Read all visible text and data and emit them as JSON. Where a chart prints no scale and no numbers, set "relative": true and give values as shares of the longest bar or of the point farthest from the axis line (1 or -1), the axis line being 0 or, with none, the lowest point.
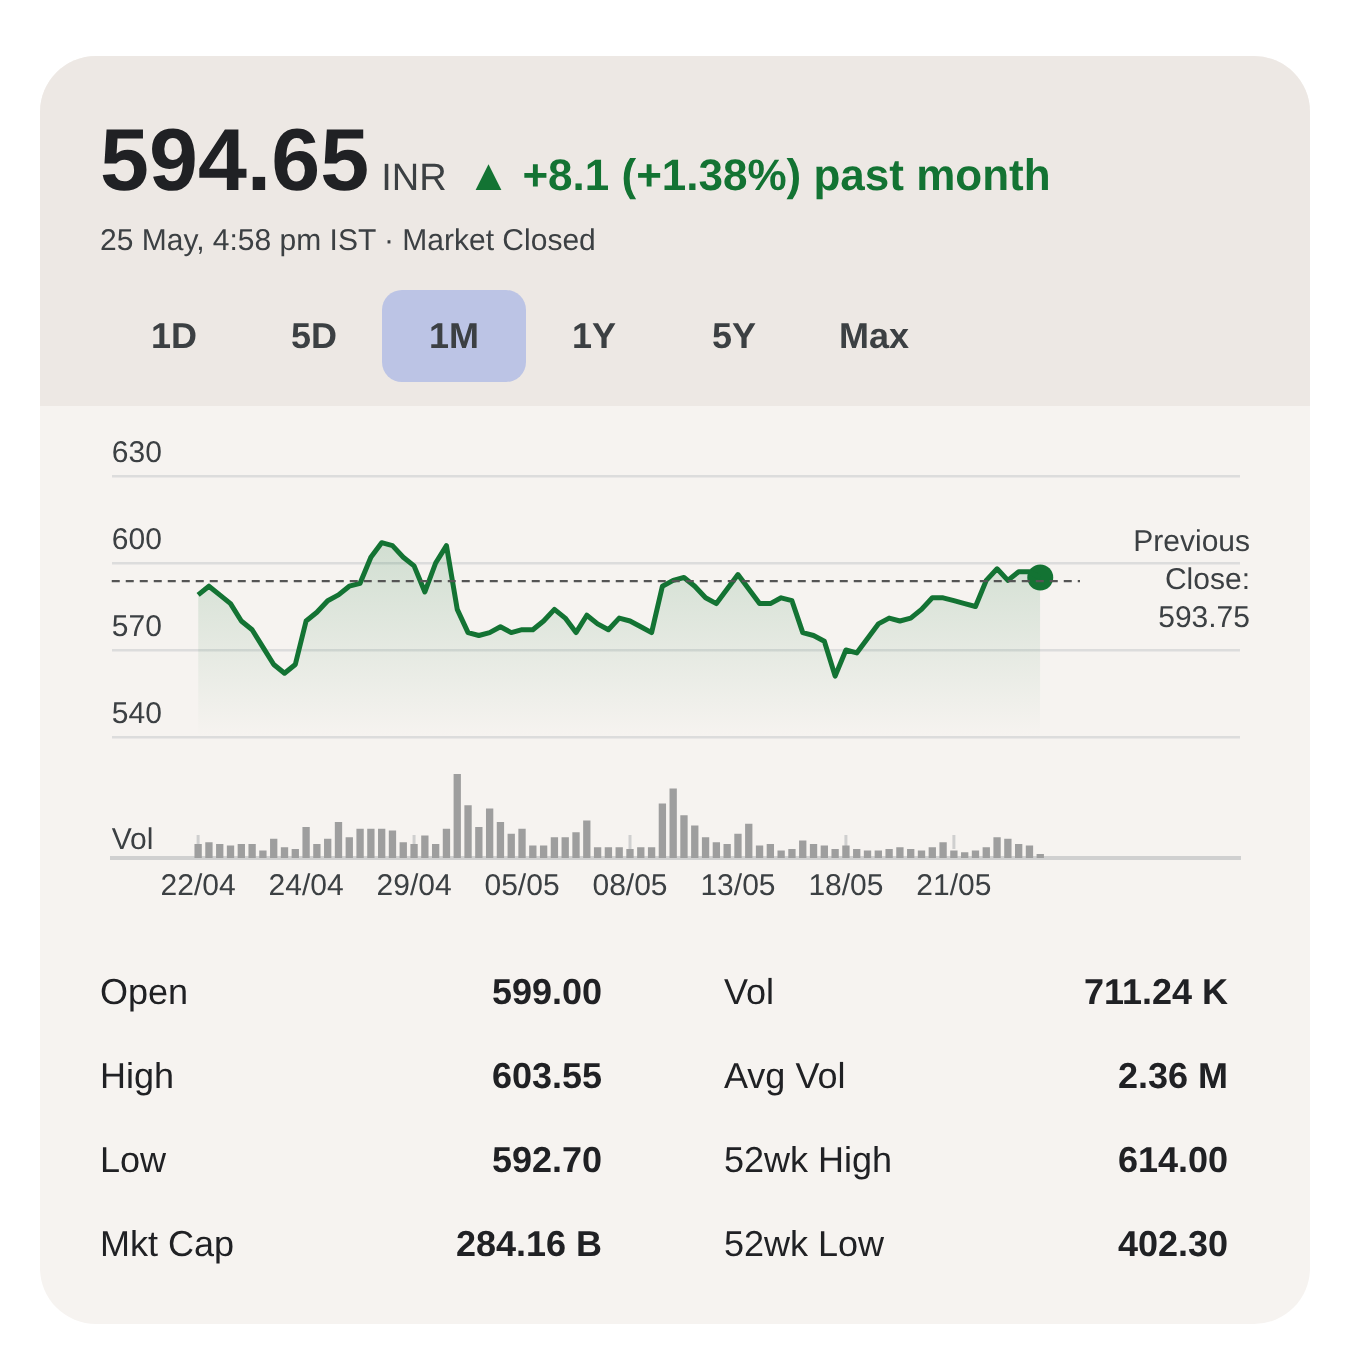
{
  "chart_data": [
    {
      "type": "other",
      "title": "594.65",
      "subtitle": "25 May, 4:58 pm IST · Market Closed",
      "annotations": [
        "INR",
        "▲ +8.1 (+1.38%) past month",
        "1D",
        "5D",
        "1M",
        "1Y",
        "5Y",
        "Max"
      ]
    },
    {
      "type": "area",
      "categories": [
        "22/04",
        null,
        null,
        null,
        null,
        null,
        null,
        null,
        null,
        null,
        "24/04",
        null,
        null,
        null,
        null,
        null,
        null,
        null,
        null,
        null,
        "29/04",
        null,
        null,
        null,
        null,
        null,
        null,
        null,
        null,
        null,
        "05/05",
        null,
        null,
        null,
        null,
        null,
        null,
        null,
        null,
        null,
        "08/05",
        null,
        null,
        null,
        null,
        null,
        null,
        null,
        null,
        null,
        "13/05",
        null,
        null,
        null,
        null,
        null,
        null,
        null,
        null,
        null,
        "18/05",
        null,
        null,
        null,
        null,
        null,
        null,
        null,
        null,
        null,
        "21/05",
        null,
        null,
        null,
        null,
        null,
        null,
        null,
        null
      ],
      "ylim": [
        540,
        630
      ],
      "yticks": [
        540,
        570,
        600,
        630
      ],
      "grid": "y",
      "legend": false,
      "marker": "none",
      "series": [
        {
          "color": "#137333",
          "values": [
            589,
            592,
            589,
            586,
            580,
            577,
            571,
            565,
            562,
            565,
            580,
            583,
            587,
            589,
            592,
            593,
            602,
            607,
            606,
            602,
            599,
            590,
            600,
            606,
            584,
            576,
            575,
            576,
            578,
            576,
            577,
            577,
            580,
            584,
            581,
            576,
            582,
            579,
            577,
            581,
            580,
            578,
            576,
            592,
            594,
            595,
            592,
            588,
            586,
            591,
            596,
            591,
            586,
            586,
            588,
            587,
            576,
            575,
            573,
            561,
            570,
            569,
            574,
            579,
            581,
            580,
            581,
            584,
            588,
            588,
            587,
            586,
            585,
            594,
            598,
            594,
            597,
            597,
            595
          ]
        },
        {
          "type": "scatter",
          "marker": "circle",
          "color": "#137333",
          "values": [
            null,
            null,
            null,
            null,
            null,
            null,
            null,
            null,
            null,
            null,
            null,
            null,
            null,
            null,
            null,
            null,
            null,
            null,
            null,
            null,
            null,
            null,
            null,
            null,
            null,
            null,
            null,
            null,
            null,
            null,
            null,
            null,
            null,
            null,
            null,
            null,
            null,
            null,
            null,
            null,
            null,
            null,
            null,
            null,
            null,
            null,
            null,
            null,
            null,
            null,
            null,
            null,
            null,
            null,
            null,
            null,
            null,
            null,
            null,
            null,
            null,
            null,
            null,
            null,
            null,
            null,
            null,
            null,
            null,
            null,
            null,
            null,
            null,
            null,
            null,
            null,
            null,
            null,
            595
          ]
        }
      ],
      "ref_lines": [
        {
          "axis": "y",
          "value": 593.75,
          "label": "Previous Close: 593.75",
          "line_style": "dashed",
          "color": "#555555"
        }
      ]
    },
    {
      "type": "bar",
      "relative": true,
      "ylabel": "Vol",
      "color": "#9e9e9e",
      "categories": [
        null,
        null,
        null,
        null,
        null,
        null,
        null,
        null,
        null,
        null,
        null,
        null,
        null,
        null,
        null,
        null,
        null,
        null,
        null,
        null,
        null,
        null,
        null,
        null,
        null,
        null,
        null,
        null,
        null,
        null,
        null,
        null,
        null,
        null,
        null,
        null,
        null,
        null,
        null,
        null,
        null,
        null,
        null,
        null,
        null,
        null,
        null,
        null,
        null,
        null,
        null,
        null,
        null,
        null,
        null,
        null,
        null,
        null,
        null,
        null,
        null,
        null,
        null,
        null,
        null,
        null,
        null,
        null,
        null,
        null,
        null,
        null,
        null,
        null,
        null,
        null,
        null,
        null,
        null
      ],
      "values": [
        0.16,
        0.18,
        0.16,
        0.14,
        0.16,
        0.16,
        0.08,
        0.22,
        0.12,
        0.1,
        0.36,
        0.16,
        0.22,
        0.42,
        0.24,
        0.34,
        0.34,
        0.34,
        0.32,
        0.18,
        0.16,
        0.26,
        0.16,
        0.34,
        1,
        0.62,
        0.36,
        0.58,
        0.42,
        0.28,
        0.34,
        0.14,
        0.14,
        0.24,
        0.24,
        0.3,
        0.44,
        0.12,
        0.12,
        0.12,
        0.1,
        0.12,
        0.12,
        0.64,
        0.82,
        0.5,
        0.38,
        0.24,
        0.18,
        0.16,
        0.28,
        0.4,
        0.14,
        0.16,
        0.08,
        0.1,
        0.2,
        0.16,
        0.14,
        0.1,
        0.14,
        0.1,
        0.08,
        0.08,
        0.1,
        0.12,
        0.1,
        0.08,
        0.12,
        0.18,
        0.08,
        0.06,
        0.08,
        0.12,
        0.24,
        0.22,
        0.16,
        0.14,
        0.04
      ]
    },
    {
      "type": "other",
      "annotations": [
        "Open",
        "599.00",
        "Vol",
        "711.24 K",
        "High",
        "603.55",
        "Avg Vol",
        "2.36 M",
        "Low",
        "592.70",
        "52wk High",
        "614.00",
        "Mkt Cap",
        "284.16 B",
        "52wk Low",
        "402.30"
      ]
    }
  ]
}
